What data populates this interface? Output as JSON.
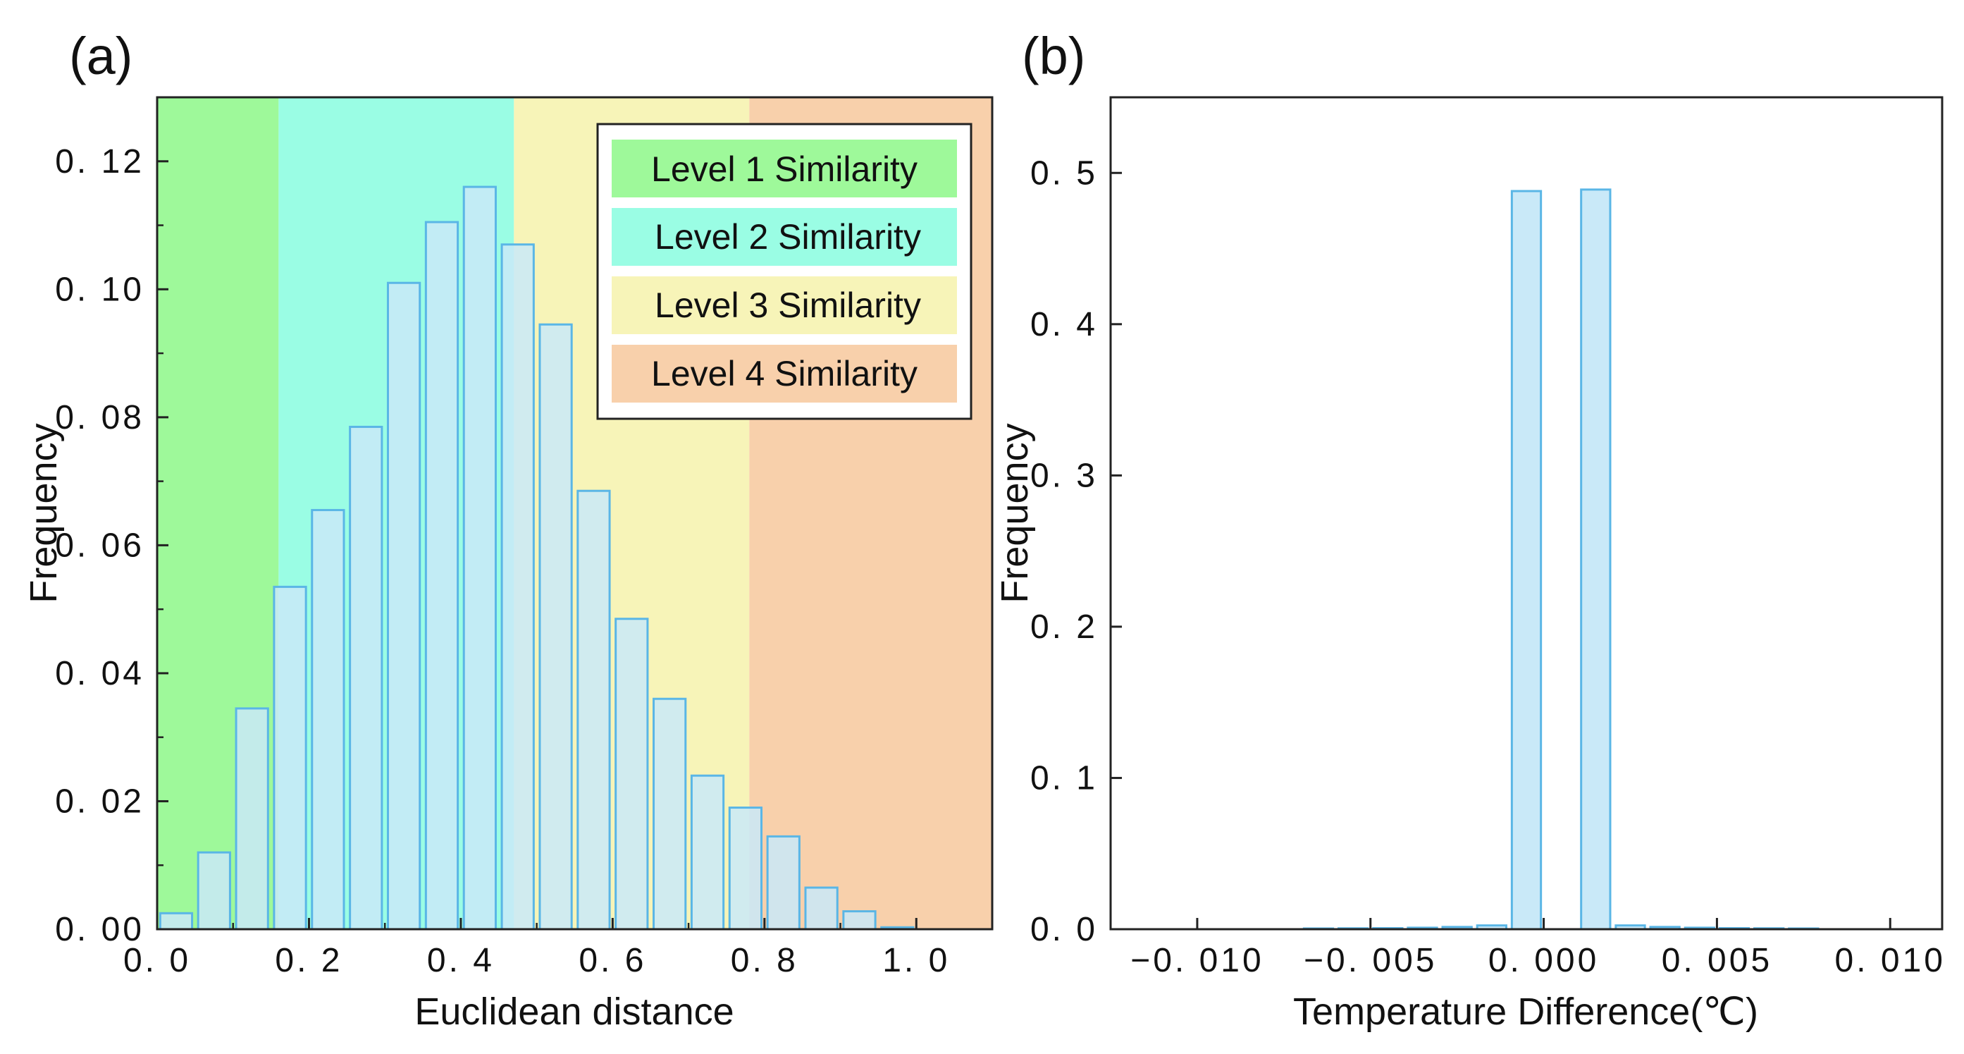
{
  "chart_data": [
    {
      "panel_label": "(a)",
      "type": "bar",
      "title": "",
      "xlabel": "Euclidean distance",
      "ylabel": "Frequency",
      "xlim": [
        0.0,
        1.1
      ],
      "ylim": [
        0.0,
        0.13
      ],
      "xticks": [
        0.0,
        0.2,
        0.4,
        0.6,
        0.8,
        1.0
      ],
      "xtick_labels": [
        "0. 0",
        "0. 2",
        "0. 4",
        "0. 6",
        "0. 8",
        "1. 0"
      ],
      "yticks": [
        0.0,
        0.02,
        0.04,
        0.06,
        0.08,
        0.1,
        0.12
      ],
      "ytick_labels": [
        "0. 00",
        "0. 02",
        "0. 04",
        "0. 06",
        "0. 08",
        "0. 10",
        "0. 12"
      ],
      "bin_width": 0.05,
      "bar_fill": "#c9e9f8",
      "bar_stroke": "#5ab6e6",
      "bins": [
        {
          "x": 0.025,
          "value": 0.0025
        },
        {
          "x": 0.075,
          "value": 0.012
        },
        {
          "x": 0.125,
          "value": 0.0345
        },
        {
          "x": 0.175,
          "value": 0.0535
        },
        {
          "x": 0.225,
          "value": 0.0655
        },
        {
          "x": 0.275,
          "value": 0.0785
        },
        {
          "x": 0.325,
          "value": 0.101
        },
        {
          "x": 0.375,
          "value": 0.1105
        },
        {
          "x": 0.425,
          "value": 0.116
        },
        {
          "x": 0.475,
          "value": 0.107
        },
        {
          "x": 0.525,
          "value": 0.0945
        },
        {
          "x": 0.575,
          "value": 0.0685
        },
        {
          "x": 0.625,
          "value": 0.0485
        },
        {
          "x": 0.675,
          "value": 0.036
        },
        {
          "x": 0.725,
          "value": 0.024
        },
        {
          "x": 0.775,
          "value": 0.019
        },
        {
          "x": 0.825,
          "value": 0.0145
        },
        {
          "x": 0.875,
          "value": 0.0065
        },
        {
          "x": 0.925,
          "value": 0.0028
        },
        {
          "x": 0.975,
          "value": 0.0003
        }
      ],
      "regions": [
        {
          "name": "Level 1 Similarity",
          "from": 0.0,
          "to": 0.16,
          "color": "#9ef99a"
        },
        {
          "name": "Level 2 Similarity",
          "from": 0.16,
          "to": 0.47,
          "color": "#9afde4"
        },
        {
          "name": "Level 3 Similarity",
          "from": 0.47,
          "to": 0.78,
          "color": "#f7f4b8"
        },
        {
          "name": "Level 4 Similarity",
          "from": 0.78,
          "to": 1.1,
          "color": "#f8d0ab"
        }
      ],
      "legend": {
        "position": "top-right",
        "entries": [
          {
            "label": "Level 1 Similarity",
            "color": "#9ef99a"
          },
          {
            "label": "Level 2 Similarity",
            "color": "#9afde4"
          },
          {
            "label": "Level 3 Similarity",
            "color": "#f7f4b8"
          },
          {
            "label": "Level 4 Similarity",
            "color": "#f8d0ab"
          }
        ]
      }
    },
    {
      "panel_label": "(b)",
      "type": "bar",
      "title": "",
      "xlabel": "Temperature Difference(℃)",
      "ylabel": "Frequency",
      "xlim": [
        -0.0125,
        0.0115
      ],
      "ylim": [
        0.0,
        0.55
      ],
      "xticks": [
        -0.01,
        -0.005,
        0.0,
        0.005,
        0.01
      ],
      "xtick_labels": [
        "−0. 010",
        "−0. 005",
        "0. 000",
        "0. 005",
        "0. 010"
      ],
      "yticks": [
        0.0,
        0.1,
        0.2,
        0.3,
        0.4,
        0.5
      ],
      "ytick_labels": [
        "0. 0",
        "0. 1",
        "0. 2",
        "0. 3",
        "0. 4",
        "0. 5"
      ],
      "bin_width": 0.001,
      "bar_fill": "#c9e9f8",
      "bar_stroke": "#5ab6e6",
      "bins": [
        {
          "x": -0.0065,
          "value": 0.0005
        },
        {
          "x": -0.0055,
          "value": 0.0006
        },
        {
          "x": -0.0045,
          "value": 0.0007
        },
        {
          "x": -0.0035,
          "value": 0.001
        },
        {
          "x": -0.0025,
          "value": 0.0015
        },
        {
          "x": -0.0015,
          "value": 0.0025
        },
        {
          "x": -0.0005,
          "value": 0.488
        },
        {
          "x": 0.0005,
          "value": 0.0
        },
        {
          "x": 0.0015,
          "value": 0.489
        },
        {
          "x": 0.0025,
          "value": 0.0025
        },
        {
          "x": 0.0035,
          "value": 0.0015
        },
        {
          "x": 0.0045,
          "value": 0.001
        },
        {
          "x": 0.0055,
          "value": 0.0007
        },
        {
          "x": 0.0065,
          "value": 0.0006
        },
        {
          "x": 0.0075,
          "value": 0.0005
        }
      ]
    }
  ]
}
